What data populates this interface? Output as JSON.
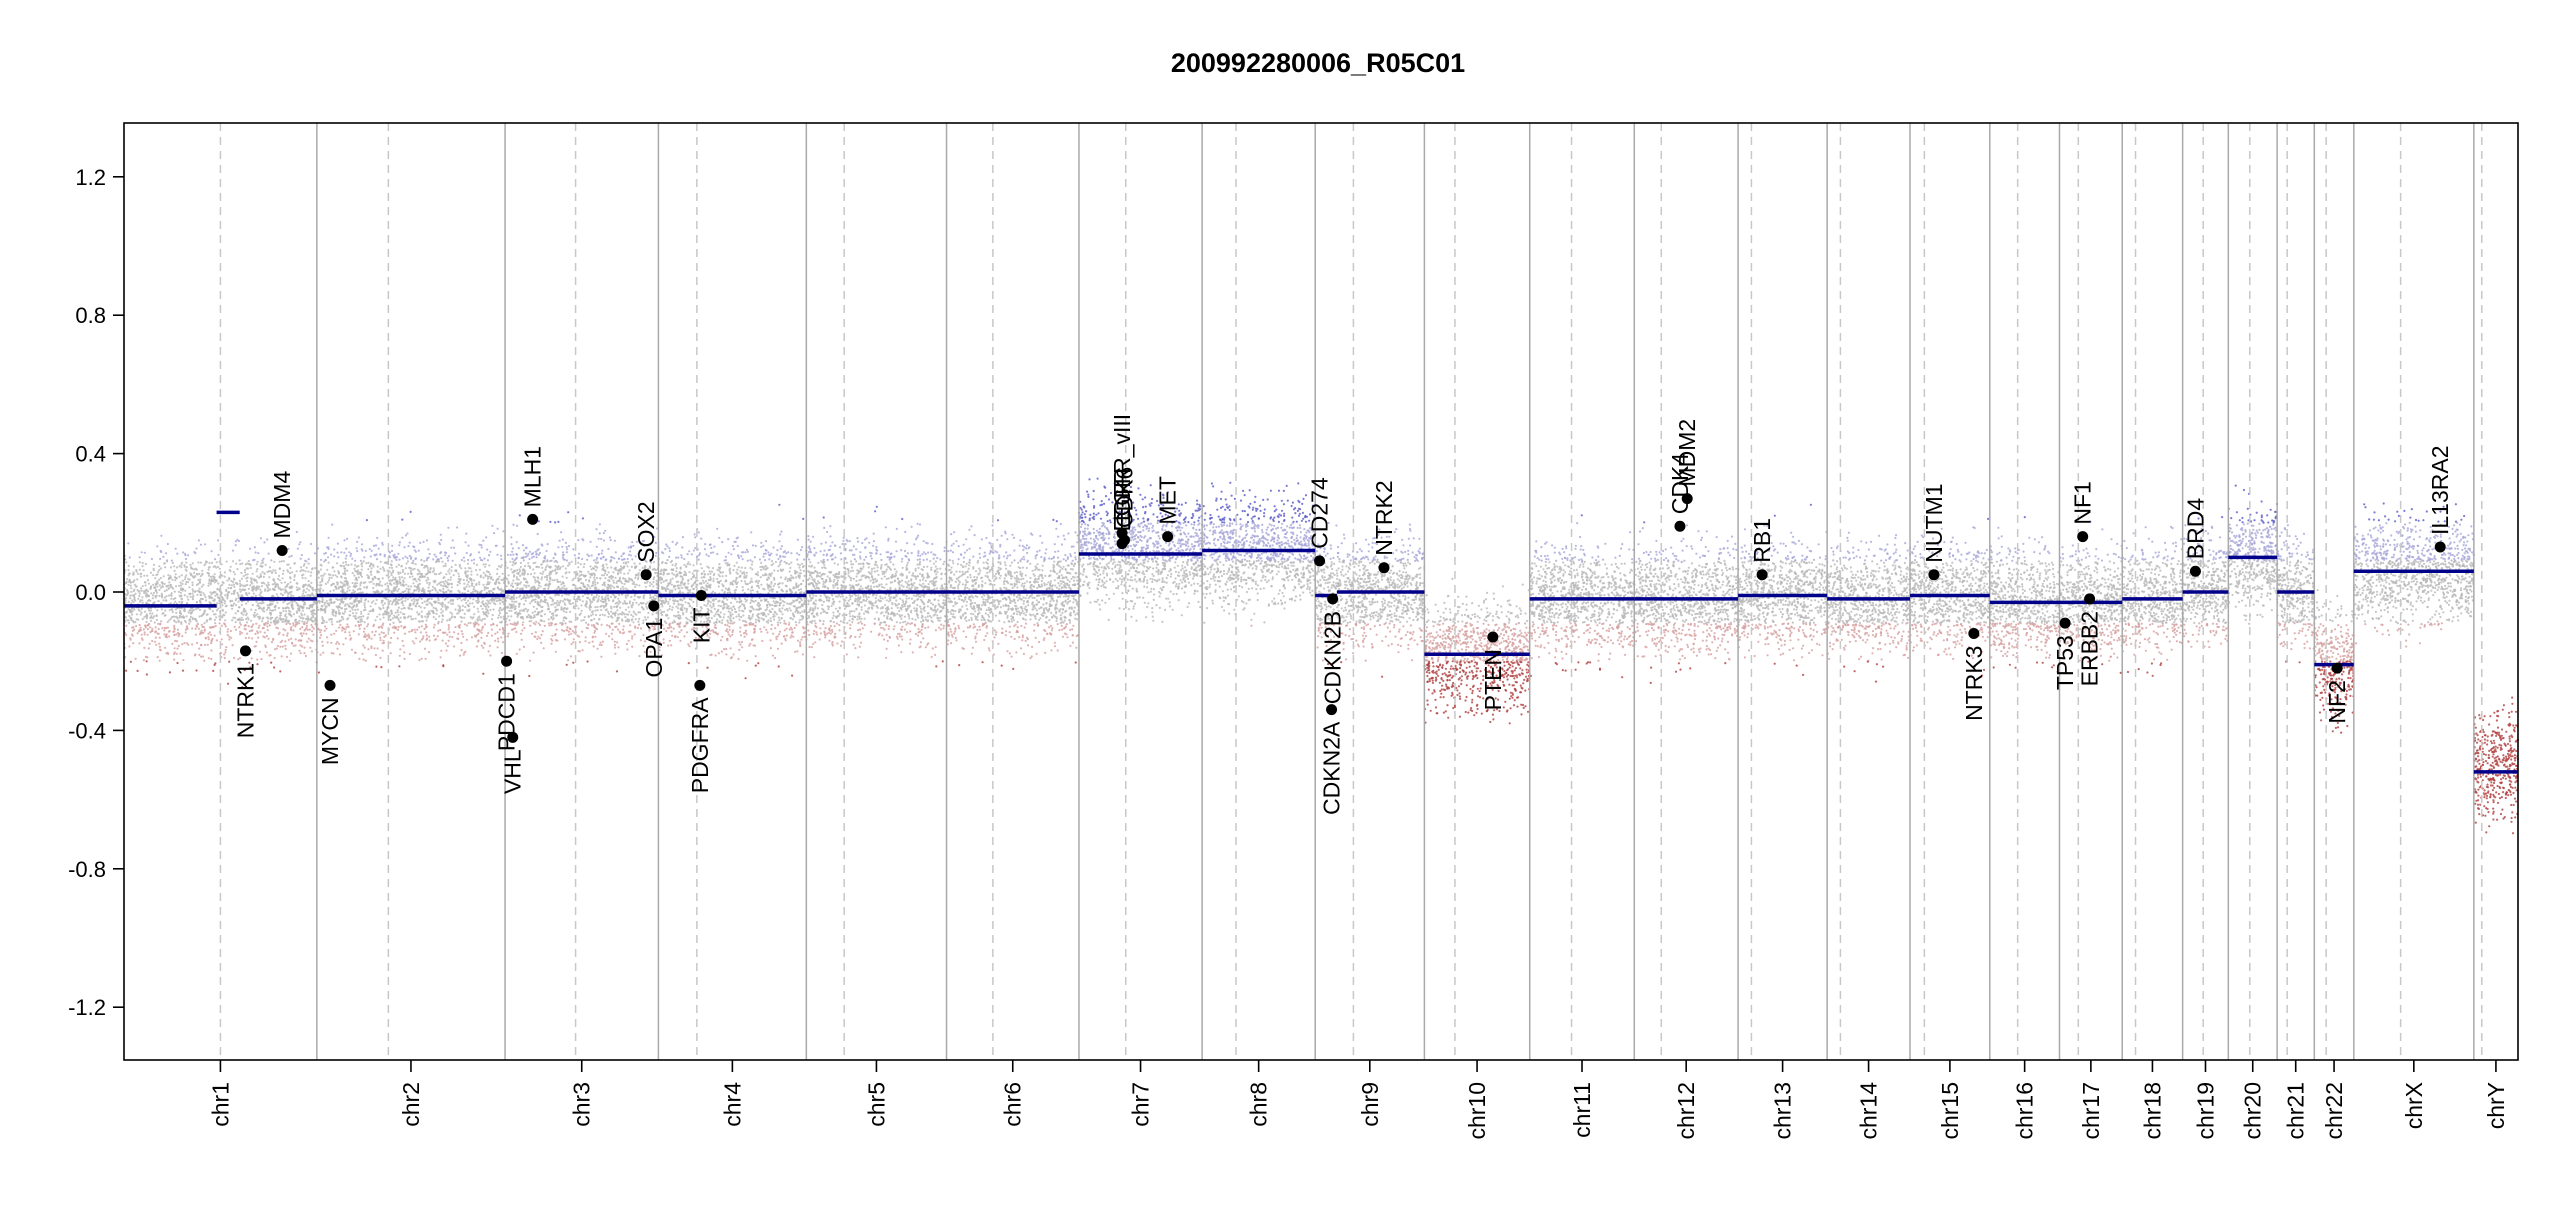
{
  "chart_data": {
    "type": "scatter",
    "title": "200992280006_R05C01",
    "xlabel": "",
    "ylabel": "",
    "ylim": [
      -1.35,
      1.35
    ],
    "y_ticks": [
      "1.2",
      "0.8",
      "0.4",
      "0.0",
      "-0.4",
      "-0.8",
      "-1.2"
    ],
    "grid": "chromosome boundaries (solid) and centromeres (dashed)",
    "colors": {
      "gain": "#2b2bb0",
      "loss": "#b22222",
      "neutral": "#b8b8b8",
      "segment": "#00008b",
      "axis": "#000000"
    },
    "chromosomes": [
      {
        "name": "chr1",
        "size": 249,
        "centromere": 0.5,
        "segments": [
          {
            "start": 0,
            "end": 0.48,
            "value": -0.04
          },
          {
            "start": 0.48,
            "end": 0.6,
            "value": 0.23
          },
          {
            "start": 0.6,
            "end": 1,
            "value": -0.02
          }
        ],
        "noise": -0.03
      },
      {
        "name": "chr2",
        "size": 243,
        "centromere": 0.38,
        "segments": [
          {
            "start": 0,
            "end": 1,
            "value": -0.01
          }
        ],
        "noise": -0.01
      },
      {
        "name": "chr3",
        "size": 198,
        "centromere": 0.46,
        "segments": [
          {
            "start": 0,
            "end": 1,
            "value": 0.0
          }
        ],
        "noise": 0.0
      },
      {
        "name": "chr4",
        "size": 191,
        "centromere": 0.26,
        "segments": [
          {
            "start": 0,
            "end": 1,
            "value": -0.01
          }
        ],
        "noise": -0.01
      },
      {
        "name": "chr5",
        "size": 181,
        "centromere": 0.27,
        "segments": [
          {
            "start": 0,
            "end": 1,
            "value": 0.0
          }
        ],
        "noise": 0.0
      },
      {
        "name": "chr6",
        "size": 171,
        "centromere": 0.35,
        "segments": [
          {
            "start": 0,
            "end": 1,
            "value": 0.0
          }
        ],
        "noise": 0.0
      },
      {
        "name": "chr7",
        "size": 159,
        "centromere": 0.38,
        "segments": [
          {
            "start": 0,
            "end": 1,
            "value": 0.11
          }
        ],
        "noise": 0.12
      },
      {
        "name": "chr8",
        "size": 146,
        "centromere": 0.3,
        "segments": [
          {
            "start": 0,
            "end": 1,
            "value": 0.12
          }
        ],
        "noise": 0.12
      },
      {
        "name": "chr9",
        "size": 141,
        "centromere": 0.35,
        "segments": [
          {
            "start": 0,
            "end": 0.2,
            "value": -0.01
          },
          {
            "start": 0.2,
            "end": 1,
            "value": 0.0
          }
        ],
        "noise": 0.0
      },
      {
        "name": "chr10",
        "size": 136,
        "centromere": 0.29,
        "segments": [
          {
            "start": 0,
            "end": 1,
            "value": -0.18
          }
        ],
        "noise": -0.18
      },
      {
        "name": "chr11",
        "size": 135,
        "centromere": 0.4,
        "segments": [
          {
            "start": 0,
            "end": 1,
            "value": -0.02
          }
        ],
        "noise": -0.02
      },
      {
        "name": "chr12",
        "size": 134,
        "centromere": 0.26,
        "segments": [
          {
            "start": 0,
            "end": 1,
            "value": -0.02
          }
        ],
        "noise": -0.02
      },
      {
        "name": "chr13",
        "size": 115,
        "centromere": 0.15,
        "segments": [
          {
            "start": 0,
            "end": 1,
            "value": -0.01
          }
        ],
        "noise": -0.01
      },
      {
        "name": "chr14",
        "size": 107,
        "centromere": 0.16,
        "segments": [
          {
            "start": 0,
            "end": 1,
            "value": -0.02
          }
        ],
        "noise": -0.02
      },
      {
        "name": "chr15",
        "size": 103,
        "centromere": 0.18,
        "segments": [
          {
            "start": 0,
            "end": 1,
            "value": -0.01
          }
        ],
        "noise": -0.01
      },
      {
        "name": "chr16",
        "size": 90,
        "centromere": 0.4,
        "segments": [
          {
            "start": 0,
            "end": 1,
            "value": -0.03
          }
        ],
        "noise": -0.03
      },
      {
        "name": "chr17",
        "size": 81,
        "centromere": 0.3,
        "segments": [
          {
            "start": 0,
            "end": 1,
            "value": -0.03
          }
        ],
        "noise": -0.03
      },
      {
        "name": "chr18",
        "size": 78,
        "centromere": 0.22,
        "segments": [
          {
            "start": 0,
            "end": 1,
            "value": -0.02
          }
        ],
        "noise": -0.02
      },
      {
        "name": "chr19",
        "size": 59,
        "centromere": 0.45,
        "segments": [
          {
            "start": 0,
            "end": 1,
            "value": 0.0
          }
        ],
        "noise": 0.02
      },
      {
        "name": "chr20",
        "size": 63,
        "centromere": 0.44,
        "segments": [
          {
            "start": 0,
            "end": 1,
            "value": 0.1
          }
        ],
        "noise": 0.1
      },
      {
        "name": "chr21",
        "size": 48,
        "centromere": 0.27,
        "segments": [
          {
            "start": 0,
            "end": 1,
            "value": 0.0
          }
        ],
        "noise": 0.0
      },
      {
        "name": "chr22",
        "size": 51,
        "centromere": 0.3,
        "segments": [
          {
            "start": 0,
            "end": 1,
            "value": -0.21
          }
        ],
        "noise": -0.2
      },
      {
        "name": "chrX",
        "size": 155,
        "centromere": 0.39,
        "segments": [
          {
            "start": 0,
            "end": 1,
            "value": 0.06
          }
        ],
        "noise": 0.06
      },
      {
        "name": "chrY",
        "size": 57,
        "centromere": 0.18,
        "segments": [
          {
            "start": 0,
            "end": 1,
            "value": -0.52
          }
        ],
        "noise": -0.5
      }
    ],
    "genes": [
      {
        "name": "MDM4",
        "chr": "chr1",
        "pos": 0.82,
        "y": 0.12
      },
      {
        "name": "NTRK1",
        "chr": "chr1",
        "pos": 0.63,
        "y": -0.17
      },
      {
        "name": "MYCN",
        "chr": "chr2",
        "pos": 0.07,
        "y": -0.27
      },
      {
        "name": "MLH1",
        "chr": "chr3",
        "pos": 0.18,
        "y": 0.21
      },
      {
        "name": "VHL",
        "chr": "chr3",
        "pos": 0.05,
        "y": -0.42
      },
      {
        "name": "PDCD1",
        "chr": "chr3",
        "pos": 0.01,
        "y": -0.2
      },
      {
        "name": "SOX2",
        "chr": "chr3",
        "pos": 0.92,
        "y": 0.05
      },
      {
        "name": "OPA1",
        "chr": "chr3",
        "pos": 0.97,
        "y": -0.04
      },
      {
        "name": "KIT",
        "chr": "chr4",
        "pos": 0.29,
        "y": -0.01
      },
      {
        "name": "PDGFRA",
        "chr": "chr4",
        "pos": 0.28,
        "y": -0.27
      },
      {
        "name": "EGFR_vIII",
        "chr": "chr7",
        "pos": 0.35,
        "y": 0.17
      },
      {
        "name": "EGFR",
        "chr": "chr7",
        "pos": 0.35,
        "y": 0.14
      },
      {
        "name": "CDK6",
        "chr": "chr7",
        "pos": 0.37,
        "y": 0.15
      },
      {
        "name": "MET",
        "chr": "chr7",
        "pos": 0.72,
        "y": 0.16
      },
      {
        "name": "CD274",
        "chr": "chr9",
        "pos": 0.04,
        "y": 0.09
      },
      {
        "name": "CDKN2B",
        "chr": "chr9",
        "pos": 0.16,
        "y": -0.02
      },
      {
        "name": "CDKN2A",
        "chr": "chr9",
        "pos": 0.15,
        "y": -0.34
      },
      {
        "name": "NTRK2",
        "chr": "chr9",
        "pos": 0.63,
        "y": 0.07
      },
      {
        "name": "PTEN",
        "chr": "chr10",
        "pos": 0.65,
        "y": -0.13
      },
      {
        "name": "CDK4",
        "chr": "chr12",
        "pos": 0.44,
        "y": 0.19
      },
      {
        "name": "MDM2",
        "chr": "chr12",
        "pos": 0.51,
        "y": 0.27
      },
      {
        "name": "RB1",
        "chr": "chr13",
        "pos": 0.27,
        "y": 0.05
      },
      {
        "name": "NUTM1",
        "chr": "chr15",
        "pos": 0.3,
        "y": 0.05
      },
      {
        "name": "NTRK3",
        "chr": "chr15",
        "pos": 0.8,
        "y": -0.12
      },
      {
        "name": "TP53",
        "chr": "chr17",
        "pos": 0.09,
        "y": -0.09
      },
      {
        "name": "ERBB2",
        "chr": "chr17",
        "pos": 0.48,
        "y": -0.02
      },
      {
        "name": "NF1",
        "chr": "chr17",
        "pos": 0.37,
        "y": 0.16
      },
      {
        "name": "BRD4",
        "chr": "chr19",
        "pos": 0.28,
        "y": 0.06
      },
      {
        "name": "NF2",
        "chr": "chr22",
        "pos": 0.58,
        "y": -0.22
      },
      {
        "name": "IL13RA2",
        "chr": "chrX",
        "pos": 0.72,
        "y": 0.13
      }
    ]
  }
}
